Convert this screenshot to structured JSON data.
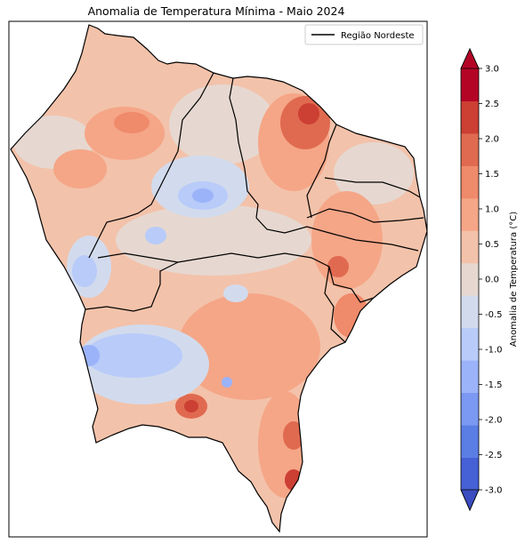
{
  "title": "Anomalia de Temperatura Mínima - Maio 2024",
  "legend": {
    "label": "Região Nordeste",
    "line_color": "#000000",
    "position": "top-right"
  },
  "colorbar": {
    "label": "Anomalia de Temperatura (°C)",
    "ticks": [
      "3.0",
      "2.5",
      "2.0",
      "1.5",
      "1.0",
      "0.5",
      "0.0",
      "-0.5",
      "-1.0",
      "-1.5",
      "-2.0",
      "-2.5",
      "-3.0"
    ],
    "levels": [
      -3.0,
      -2.5,
      -2.0,
      -1.5,
      -1.0,
      -0.5,
      0.0,
      0.5,
      1.0,
      1.5,
      2.0,
      2.5,
      3.0
    ],
    "colors": [
      "#4660d6",
      "#5b7ee5",
      "#7b98f2",
      "#9bb3f9",
      "#b8cbf9",
      "#d2dbed",
      "#e6d8d0",
      "#f3c2aa",
      "#f5a687",
      "#ef8a6b",
      "#e06a50",
      "#cc3f33",
      "#b40426"
    ],
    "extend": "both",
    "colormap": "coolwarm"
  }
}
